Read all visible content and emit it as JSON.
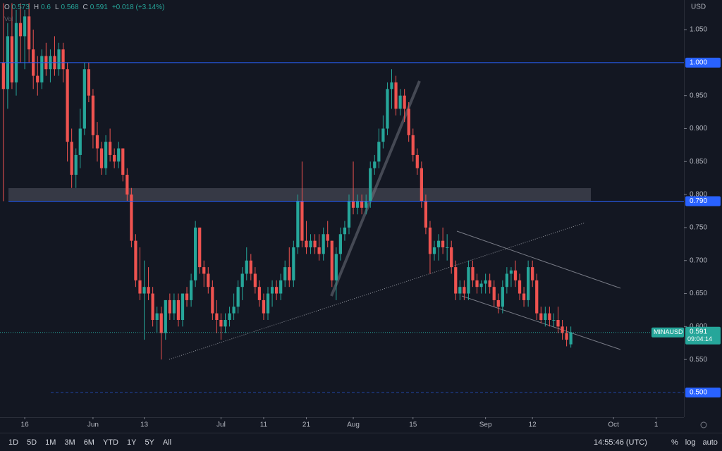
{
  "chart_data": {
    "type": "candlestick",
    "currency": "USD",
    "symbol": "MINAUSD",
    "countdown": "09:04:14",
    "change": "+0.018 (+3.14%)",
    "volume_label": "Vol",
    "ohlc_keys": [
      "O",
      "H",
      "L",
      "C"
    ],
    "up_color": "#26a69a",
    "down_color": "#ef5350",
    "level_color": "#2962ff",
    "grid": false,
    "ylim": [
      0.4626,
      1.0949
    ],
    "xlim": [
      -0.8,
      159.5
    ],
    "yticks": [
      {
        "value": 1.05,
        "label": "1.050"
      },
      {
        "value": 0.95,
        "label": "0.950"
      },
      {
        "value": 0.9,
        "label": "0.900"
      },
      {
        "value": 0.85,
        "label": "0.850"
      },
      {
        "value": 0.8,
        "label": "0.800"
      },
      {
        "value": 0.75,
        "label": "0.750"
      },
      {
        "value": 0.7,
        "label": "0.700"
      },
      {
        "value": 0.65,
        "label": "0.650"
      },
      {
        "value": 0.6,
        "label": "0.600"
      },
      {
        "value": 0.55,
        "label": "0.550"
      }
    ],
    "xticks": [
      {
        "value": 5,
        "label": "16"
      },
      {
        "value": 21,
        "label": "Jun"
      },
      {
        "value": 33,
        "label": "13"
      },
      {
        "value": 51,
        "label": "Jul"
      },
      {
        "value": 61,
        "label": "11"
      },
      {
        "value": 71,
        "label": "21"
      },
      {
        "value": 82,
        "label": "Aug"
      },
      {
        "value": 96,
        "label": "15"
      },
      {
        "value": 113,
        "label": "Sep"
      },
      {
        "value": 124,
        "label": "12"
      },
      {
        "value": 143,
        "label": "Oct"
      },
      {
        "value": 153,
        "label": "1"
      }
    ],
    "levels": [
      {
        "value": 1.0,
        "label": "1.000"
      },
      {
        "value": 0.79,
        "label": "0.790"
      },
      {
        "value": 0.5,
        "label": "0.500"
      }
    ],
    "candles": [
      [
        1.0,
        1.09,
        0.79,
        0.96
      ],
      [
        0.96,
        1.06,
        0.93,
        1.04
      ],
      [
        1.04,
        1.09,
        0.96,
        0.97
      ],
      [
        0.97,
        1.08,
        0.95,
        1.06
      ],
      [
        1.06,
        1.09,
        1.0,
        1.04
      ],
      [
        1.04,
        1.08,
        0.99,
        1.07
      ],
      [
        1.07,
        1.09,
        1.0,
        1.02
      ],
      [
        1.02,
        1.05,
        0.96,
        0.98
      ],
      [
        0.98,
        1.01,
        0.95,
        0.97
      ],
      [
        0.97,
        1.02,
        0.96,
        1.01
      ],
      [
        1.01,
        1.03,
        0.98,
        0.99
      ],
      [
        0.99,
        1.02,
        0.97,
        1.01
      ],
      [
        1.01,
        1.04,
        0.98,
        0.99
      ],
      [
        0.99,
        1.03,
        0.98,
        1.02
      ],
      [
        1.02,
        1.03,
        0.97,
        0.99
      ],
      [
        0.99,
        1.0,
        0.85,
        0.88
      ],
      [
        0.88,
        0.9,
        0.81,
        0.83
      ],
      [
        0.83,
        0.87,
        0.81,
        0.86
      ],
      [
        0.86,
        0.93,
        0.84,
        0.9
      ],
      [
        0.9,
        1.0,
        0.89,
        0.99
      ],
      [
        0.99,
        1.0,
        0.94,
        0.95
      ],
      [
        0.95,
        0.96,
        0.87,
        0.89
      ],
      [
        0.89,
        0.91,
        0.85,
        0.87
      ],
      [
        0.87,
        0.88,
        0.83,
        0.84
      ],
      [
        0.84,
        0.89,
        0.83,
        0.88
      ],
      [
        0.88,
        0.9,
        0.85,
        0.86
      ],
      [
        0.86,
        0.87,
        0.84,
        0.85
      ],
      [
        0.85,
        0.88,
        0.84,
        0.87
      ],
      [
        0.87,
        0.87,
        0.82,
        0.83
      ],
      [
        0.83,
        0.84,
        0.79,
        0.8
      ],
      [
        0.8,
        0.81,
        0.72,
        0.73
      ],
      [
        0.73,
        0.74,
        0.66,
        0.67
      ],
      [
        0.67,
        0.72,
        0.64,
        0.65
      ],
      [
        0.65,
        0.7,
        0.58,
        0.66
      ],
      [
        0.66,
        0.69,
        0.64,
        0.65
      ],
      [
        0.65,
        0.66,
        0.6,
        0.61
      ],
      [
        0.61,
        0.63,
        0.59,
        0.62
      ],
      [
        0.62,
        0.63,
        0.55,
        0.59
      ],
      [
        0.59,
        0.64,
        0.58,
        0.64
      ],
      [
        0.64,
        0.65,
        0.61,
        0.62
      ],
      [
        0.62,
        0.65,
        0.61,
        0.64
      ],
      [
        0.64,
        0.65,
        0.6,
        0.61
      ],
      [
        0.61,
        0.65,
        0.6,
        0.65
      ],
      [
        0.65,
        0.66,
        0.63,
        0.64
      ],
      [
        0.64,
        0.68,
        0.63,
        0.67
      ],
      [
        0.67,
        0.76,
        0.66,
        0.75
      ],
      [
        0.75,
        0.75,
        0.68,
        0.69
      ],
      [
        0.69,
        0.7,
        0.66,
        0.68
      ],
      [
        0.68,
        0.69,
        0.65,
        0.66
      ],
      [
        0.66,
        0.67,
        0.61,
        0.62
      ],
      [
        0.62,
        0.64,
        0.59,
        0.61
      ],
      [
        0.61,
        0.62,
        0.58,
        0.6
      ],
      [
        0.6,
        0.62,
        0.59,
        0.61
      ],
      [
        0.61,
        0.63,
        0.6,
        0.62
      ],
      [
        0.62,
        0.65,
        0.61,
        0.63
      ],
      [
        0.63,
        0.67,
        0.62,
        0.66
      ],
      [
        0.66,
        0.69,
        0.64,
        0.68
      ],
      [
        0.68,
        0.72,
        0.67,
        0.7
      ],
      [
        0.7,
        0.71,
        0.67,
        0.68
      ],
      [
        0.68,
        0.69,
        0.65,
        0.66
      ],
      [
        0.66,
        0.67,
        0.63,
        0.64
      ],
      [
        0.64,
        0.65,
        0.61,
        0.62
      ],
      [
        0.62,
        0.66,
        0.61,
        0.65
      ],
      [
        0.65,
        0.67,
        0.63,
        0.66
      ],
      [
        0.66,
        0.67,
        0.64,
        0.65
      ],
      [
        0.65,
        0.68,
        0.64,
        0.67
      ],
      [
        0.67,
        0.7,
        0.66,
        0.69
      ],
      [
        0.69,
        0.72,
        0.66,
        0.67
      ],
      [
        0.67,
        0.73,
        0.66,
        0.72
      ],
      [
        0.72,
        0.8,
        0.71,
        0.79
      ],
      [
        0.79,
        0.85,
        0.72,
        0.73
      ],
      [
        0.73,
        0.76,
        0.71,
        0.72
      ],
      [
        0.72,
        0.74,
        0.71,
        0.73
      ],
      [
        0.73,
        0.74,
        0.71,
        0.72
      ],
      [
        0.72,
        0.74,
        0.7,
        0.71
      ],
      [
        0.71,
        0.75,
        0.7,
        0.74
      ],
      [
        0.74,
        0.76,
        0.72,
        0.73
      ],
      [
        0.73,
        0.73,
        0.66,
        0.67
      ],
      [
        0.67,
        0.72,
        0.64,
        0.71
      ],
      [
        0.71,
        0.75,
        0.7,
        0.74
      ],
      [
        0.74,
        0.76,
        0.73,
        0.75
      ],
      [
        0.75,
        0.8,
        0.74,
        0.79
      ],
      [
        0.79,
        0.85,
        0.77,
        0.78
      ],
      [
        0.78,
        0.8,
        0.77,
        0.79
      ],
      [
        0.79,
        0.8,
        0.77,
        0.78
      ],
      [
        0.78,
        0.8,
        0.77,
        0.79
      ],
      [
        0.79,
        0.85,
        0.78,
        0.84
      ],
      [
        0.84,
        0.86,
        0.83,
        0.85
      ],
      [
        0.85,
        0.9,
        0.84,
        0.88
      ],
      [
        0.88,
        0.92,
        0.87,
        0.9
      ],
      [
        0.9,
        0.97,
        0.89,
        0.96
      ],
      [
        0.96,
        0.99,
        0.93,
        0.97
      ],
      [
        0.97,
        0.98,
        0.92,
        0.93
      ],
      [
        0.93,
        0.96,
        0.92,
        0.95
      ],
      [
        0.95,
        0.96,
        0.91,
        0.93
      ],
      [
        0.93,
        0.94,
        0.88,
        0.89
      ],
      [
        0.89,
        0.9,
        0.85,
        0.86
      ],
      [
        0.86,
        0.87,
        0.83,
        0.84
      ],
      [
        0.84,
        0.85,
        0.78,
        0.79
      ],
      [
        0.79,
        0.8,
        0.74,
        0.75
      ],
      [
        0.75,
        0.76,
        0.68,
        0.71
      ],
      [
        0.71,
        0.73,
        0.7,
        0.72
      ],
      [
        0.72,
        0.74,
        0.7,
        0.73
      ],
      [
        0.73,
        0.75,
        0.71,
        0.72
      ],
      [
        0.72,
        0.74,
        0.7,
        0.72
      ],
      [
        0.72,
        0.73,
        0.68,
        0.69
      ],
      [
        0.69,
        0.7,
        0.64,
        0.65
      ],
      [
        0.65,
        0.67,
        0.64,
        0.66
      ],
      [
        0.66,
        0.67,
        0.64,
        0.65
      ],
      [
        0.65,
        0.7,
        0.64,
        0.69
      ],
      [
        0.69,
        0.7,
        0.66,
        0.67
      ],
      [
        0.67,
        0.68,
        0.65,
        0.66
      ],
      [
        0.66,
        0.67,
        0.65,
        0.665
      ],
      [
        0.665,
        0.68,
        0.65,
        0.67
      ],
      [
        0.67,
        0.68,
        0.65,
        0.66
      ],
      [
        0.66,
        0.67,
        0.63,
        0.64
      ],
      [
        0.64,
        0.65,
        0.62,
        0.63
      ],
      [
        0.63,
        0.67,
        0.62,
        0.66
      ],
      [
        0.66,
        0.69,
        0.65,
        0.68
      ],
      [
        0.68,
        0.69,
        0.66,
        0.685
      ],
      [
        0.685,
        0.7,
        0.66,
        0.67
      ],
      [
        0.67,
        0.68,
        0.64,
        0.65
      ],
      [
        0.65,
        0.66,
        0.63,
        0.64
      ],
      [
        0.64,
        0.7,
        0.63,
        0.69
      ],
      [
        0.69,
        0.7,
        0.66,
        0.67
      ],
      [
        0.67,
        0.68,
        0.61,
        0.62
      ],
      [
        0.62,
        0.63,
        0.605,
        0.61
      ],
      [
        0.61,
        0.63,
        0.6,
        0.62
      ],
      [
        0.62,
        0.63,
        0.6,
        0.61
      ],
      [
        0.61,
        0.62,
        0.6,
        0.61
      ],
      [
        0.61,
        0.63,
        0.59,
        0.6
      ],
      [
        0.6,
        0.61,
        0.58,
        0.59
      ],
      [
        0.59,
        0.6,
        0.57,
        0.58
      ],
      [
        0.573,
        0.6,
        0.568,
        0.591
      ]
    ]
  },
  "toolbar": {
    "ranges": [
      "1D",
      "5D",
      "1M",
      "3M",
      "6M",
      "YTD",
      "1Y",
      "5Y",
      "All"
    ],
    "time": "14:55:46 (UTC)",
    "options": [
      "%",
      "log",
      "auto"
    ]
  }
}
